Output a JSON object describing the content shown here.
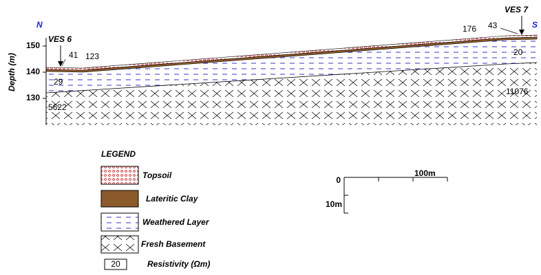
{
  "header": {
    "north": "N",
    "south": "S"
  },
  "axis": {
    "label": "Depth (m)",
    "ticks": [
      "150",
      "140",
      "130"
    ]
  },
  "soundings": [
    {
      "name": "VES 6"
    },
    {
      "name": "VES 7"
    }
  ],
  "resistivity_labels": [
    "41",
    "123",
    "29",
    "5622",
    "176",
    "43",
    "20",
    "11076"
  ],
  "legend": {
    "title": "LEGEND",
    "items": [
      "Topsoil",
      "Lateritic Clay",
      "Weathered Layer",
      "Fresh Basement"
    ],
    "resistivity": {
      "sample": "20",
      "label": "Resistivity (Ωm)"
    }
  },
  "scale": {
    "origin": "0",
    "horizontal": "100m",
    "vertical": "10m"
  }
}
